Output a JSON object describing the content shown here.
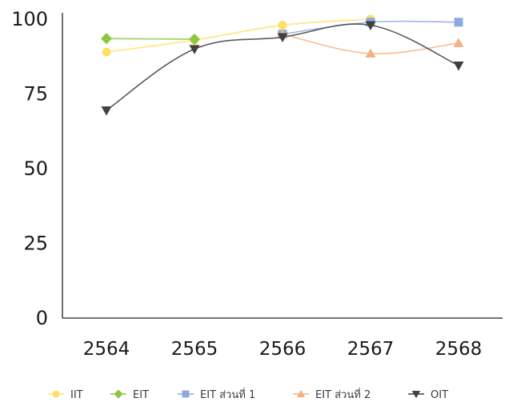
{
  "chart_data": {
    "type": "line",
    "title": "",
    "xlabel": "",
    "ylabel": "",
    "categories": [
      "2564",
      "2565",
      "2566",
      "2567",
      "2568"
    ],
    "ylim": [
      0,
      100
    ],
    "yticks": [
      "0",
      "25",
      "50",
      "75",
      "100"
    ],
    "grid": false,
    "legend": "bottom",
    "series": [
      {
        "name": "IIT",
        "color": "#FFE066",
        "marker": "circle",
        "values": [
          89,
          93,
          98,
          100,
          null
        ]
      },
      {
        "name": "EIT",
        "color": "#8DC63F",
        "marker": "diamond",
        "values": [
          93.5,
          93.3,
          null,
          null,
          null
        ]
      },
      {
        "name": "EIT ส่วนที่ 1",
        "color": "#8EA9DB",
        "marker": "square",
        "values": [
          null,
          null,
          95,
          99,
          99
        ]
      },
      {
        "name": "EIT ส่วนที่ 2",
        "color": "#F4B183",
        "marker": "triangle-up",
        "values": [
          null,
          null,
          95,
          88.5,
          92
        ]
      },
      {
        "name": "OIT",
        "color": "#404040",
        "marker": "triangle-down",
        "values": [
          69.5,
          90,
          94,
          98,
          84.5
        ]
      }
    ]
  }
}
